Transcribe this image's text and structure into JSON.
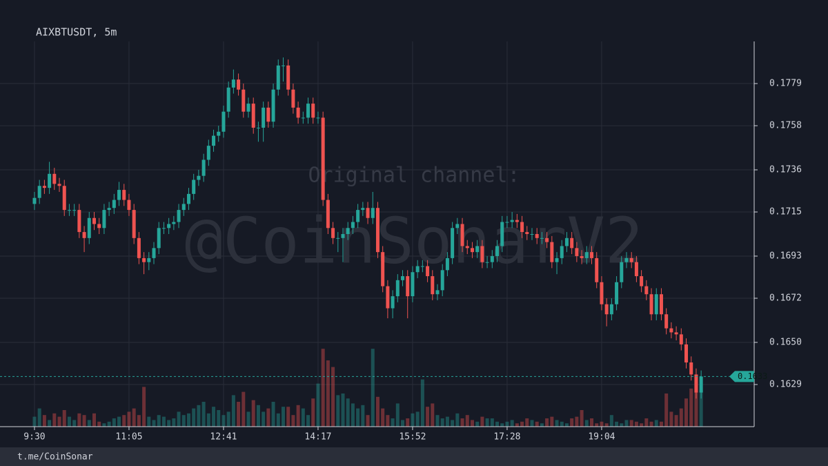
{
  "chart_data": {
    "type": "candlestick",
    "title": "AIXBTUSDT, 5m",
    "watermark": [
      "Original channel:",
      "@CoinSonarV2"
    ],
    "footer": "t.me/CoinSonar",
    "up_color": "#26a69a",
    "down_color": "#ef5350",
    "grid": true,
    "xlim": [
      -6.93,
      144.66
    ],
    "xticks": [
      {
        "value": 0,
        "label": "9:30"
      },
      {
        "value": 19,
        "label": "11:05"
      },
      {
        "value": 38,
        "label": "12:41"
      },
      {
        "value": 57,
        "label": "14:17"
      },
      {
        "value": 76,
        "label": "15:52"
      },
      {
        "value": 95,
        "label": "17:28"
      },
      {
        "value": 114,
        "label": "19:04"
      }
    ],
    "ylim": [
      0.1608,
      0.18
    ],
    "yticks": [
      0.1629,
      {
        "value": 0.165,
        "label": "0.1650"
      },
      0.1672,
      0.1693,
      0.1715,
      0.1736,
      0.1758,
      0.1779
    ],
    "ohlc": [
      [
        0.1719,
        0.1725,
        0.1716,
        0.1722
      ],
      [
        0.1722,
        0.1731,
        0.1719,
        0.1728
      ],
      [
        0.1728,
        0.1731,
        0.1724,
        0.1727
      ],
      [
        0.1727,
        0.174,
        0.1724,
        0.1734
      ],
      [
        0.1734,
        0.1737,
        0.1726,
        0.1729
      ],
      [
        0.1729,
        0.1732,
        0.1725,
        0.1728
      ],
      [
        0.1728,
        0.1731,
        0.1713,
        0.1716
      ],
      [
        0.1716,
        0.1719,
        0.1713,
        0.1716
      ],
      [
        0.1716,
        0.1719,
        0.1713,
        0.1716
      ],
      [
        0.1716,
        0.1719,
        0.1702,
        0.1705
      ],
      [
        0.1705,
        0.1708,
        0.1695,
        0.1702
      ],
      [
        0.1702,
        0.1715,
        0.1699,
        0.1712
      ],
      [
        0.1712,
        0.1715,
        0.1706,
        0.1709
      ],
      [
        0.1709,
        0.1712,
        0.1704,
        0.1707
      ],
      [
        0.1707,
        0.1719,
        0.1704,
        0.1716
      ],
      [
        0.1716,
        0.172,
        0.1713,
        0.1717
      ],
      [
        0.1717,
        0.1724,
        0.1714,
        0.1721
      ],
      [
        0.1721,
        0.173,
        0.1718,
        0.1726
      ],
      [
        0.1726,
        0.1729,
        0.1718,
        0.1721
      ],
      [
        0.1721,
        0.1724,
        0.1713,
        0.1716
      ],
      [
        0.1716,
        0.1719,
        0.1699,
        0.1702
      ],
      [
        0.1702,
        0.1705,
        0.1689,
        0.1692
      ],
      [
        0.1692,
        0.1695,
        0.1684,
        0.169
      ],
      [
        0.169,
        0.1695,
        0.1686,
        0.1692
      ],
      [
        0.1692,
        0.17,
        0.1689,
        0.1697
      ],
      [
        0.1697,
        0.171,
        0.1694,
        0.1707
      ],
      [
        0.1707,
        0.171,
        0.1704,
        0.1707
      ],
      [
        0.1707,
        0.1712,
        0.1704,
        0.1709
      ],
      [
        0.1709,
        0.1713,
        0.1706,
        0.171
      ],
      [
        0.171,
        0.1719,
        0.1707,
        0.1716
      ],
      [
        0.1716,
        0.1722,
        0.1713,
        0.1719
      ],
      [
        0.1719,
        0.1727,
        0.1716,
        0.1724
      ],
      [
        0.1724,
        0.1734,
        0.1721,
        0.1731
      ],
      [
        0.1731,
        0.1736,
        0.1728,
        0.1733
      ],
      [
        0.1733,
        0.1744,
        0.173,
        0.1741
      ],
      [
        0.1741,
        0.1751,
        0.1738,
        0.1748
      ],
      [
        0.1748,
        0.1756,
        0.1745,
        0.1753
      ],
      [
        0.1753,
        0.1758,
        0.175,
        0.1755
      ],
      [
        0.1755,
        0.1768,
        0.1752,
        0.1765
      ],
      [
        0.1765,
        0.178,
        0.1762,
        0.1777
      ],
      [
        0.1777,
        0.1786,
        0.1774,
        0.1781
      ],
      [
        0.1781,
        0.1784,
        0.1773,
        0.1776
      ],
      [
        0.1776,
        0.1779,
        0.1762,
        0.1765
      ],
      [
        0.1765,
        0.1772,
        0.1762,
        0.1769
      ],
      [
        0.1769,
        0.1772,
        0.1754,
        0.1757
      ],
      [
        0.1757,
        0.176,
        0.175,
        0.1757
      ],
      [
        0.1757,
        0.177,
        0.175,
        0.1767
      ],
      [
        0.1767,
        0.177,
        0.1757,
        0.176
      ],
      [
        0.176,
        0.1779,
        0.1757,
        0.1776
      ],
      [
        0.1776,
        0.1791,
        0.1773,
        0.1788
      ],
      [
        0.1788,
        0.1792,
        0.178,
        0.1788
      ],
      [
        0.1788,
        0.1791,
        0.1773,
        0.1776
      ],
      [
        0.1776,
        0.1779,
        0.1764,
        0.1767
      ],
      [
        0.1767,
        0.177,
        0.1759,
        0.1762
      ],
      [
        0.1762,
        0.1765,
        0.1759,
        0.1762
      ],
      [
        0.1762,
        0.1772,
        0.1759,
        0.1769
      ],
      [
        0.1769,
        0.1772,
        0.1759,
        0.1762
      ],
      [
        0.1762,
        0.1765,
        0.1759,
        0.1762
      ],
      [
        0.1762,
        0.1765,
        0.1718,
        0.1721
      ],
      [
        0.1721,
        0.1724,
        0.1704,
        0.1707
      ],
      [
        0.1707,
        0.171,
        0.1699,
        0.1702
      ],
      [
        0.1702,
        0.1705,
        0.1695,
        0.1702
      ],
      [
        0.1702,
        0.1707,
        0.169,
        0.1704
      ],
      [
        0.1704,
        0.171,
        0.1701,
        0.1707
      ],
      [
        0.1707,
        0.1713,
        0.1704,
        0.171
      ],
      [
        0.171,
        0.1719,
        0.1707,
        0.1716
      ],
      [
        0.1716,
        0.172,
        0.1713,
        0.1717
      ],
      [
        0.1717,
        0.172,
        0.1709,
        0.1712
      ],
      [
        0.1712,
        0.1725,
        0.1709,
        0.1717
      ],
      [
        0.1717,
        0.172,
        0.1692,
        0.1695
      ],
      [
        0.1695,
        0.1698,
        0.1675,
        0.1678
      ],
      [
        0.1678,
        0.1681,
        0.1662,
        0.1667
      ],
      [
        0.1667,
        0.1676,
        0.1662,
        0.1673
      ],
      [
        0.1673,
        0.1684,
        0.167,
        0.1681
      ],
      [
        0.1681,
        0.1686,
        0.1678,
        0.1683
      ],
      [
        0.1683,
        0.1686,
        0.1662,
        0.1673
      ],
      [
        0.1673,
        0.1688,
        0.167,
        0.1685
      ],
      [
        0.1685,
        0.1691,
        0.1682,
        0.1688
      ],
      [
        0.1688,
        0.1691,
        0.1685,
        0.1688
      ],
      [
        0.1688,
        0.1691,
        0.168,
        0.1683
      ],
      [
        0.1683,
        0.1686,
        0.1671,
        0.1674
      ],
      [
        0.1674,
        0.1679,
        0.1671,
        0.1676
      ],
      [
        0.1676,
        0.1689,
        0.1673,
        0.1686
      ],
      [
        0.1686,
        0.1695,
        0.1683,
        0.1692
      ],
      [
        0.1692,
        0.171,
        0.1689,
        0.1707
      ],
      [
        0.1707,
        0.1712,
        0.1704,
        0.1709
      ],
      [
        0.1709,
        0.1712,
        0.1695,
        0.1698
      ],
      [
        0.1698,
        0.1701,
        0.1694,
        0.1697
      ],
      [
        0.1697,
        0.17,
        0.1692,
        0.1695
      ],
      [
        0.1695,
        0.1701,
        0.1692,
        0.1698
      ],
      [
        0.1698,
        0.1701,
        0.1687,
        0.169
      ],
      [
        0.169,
        0.1693,
        0.1687,
        0.169
      ],
      [
        0.169,
        0.1696,
        0.1687,
        0.1693
      ],
      [
        0.1693,
        0.1701,
        0.169,
        0.1698
      ],
      [
        0.1698,
        0.1713,
        0.1695,
        0.171
      ],
      [
        0.171,
        0.1713,
        0.1707,
        0.171
      ],
      [
        0.171,
        0.1715,
        0.1707,
        0.1711
      ],
      [
        0.1711,
        0.1714,
        0.1707,
        0.171
      ],
      [
        0.171,
        0.1713,
        0.1702,
        0.1705
      ],
      [
        0.1705,
        0.1708,
        0.1701,
        0.1704
      ],
      [
        0.1704,
        0.1707,
        0.1701,
        0.1704
      ],
      [
        0.1704,
        0.1707,
        0.1699,
        0.1702
      ],
      [
        0.1702,
        0.1705,
        0.1699,
        0.1702
      ],
      [
        0.1702,
        0.1705,
        0.1697,
        0.17
      ],
      [
        0.17,
        0.1703,
        0.1687,
        0.169
      ],
      [
        0.169,
        0.1695,
        0.1684,
        0.1692
      ],
      [
        0.1692,
        0.1701,
        0.1689,
        0.1698
      ],
      [
        0.1698,
        0.1705,
        0.1695,
        0.1702
      ],
      [
        0.1702,
        0.1705,
        0.1694,
        0.1697
      ],
      [
        0.1697,
        0.17,
        0.169,
        0.1693
      ],
      [
        0.1693,
        0.1696,
        0.1689,
        0.1692
      ],
      [
        0.1692,
        0.1698,
        0.1689,
        0.1695
      ],
      [
        0.1695,
        0.1698,
        0.1689,
        0.1692
      ],
      [
        0.1692,
        0.1695,
        0.1677,
        0.168
      ],
      [
        0.168,
        0.1683,
        0.1666,
        0.1669
      ],
      [
        0.1669,
        0.1672,
        0.1658,
        0.1664
      ],
      [
        0.1664,
        0.1672,
        0.1661,
        0.1669
      ],
      [
        0.1669,
        0.1683,
        0.1666,
        0.168
      ],
      [
        0.168,
        0.1693,
        0.1677,
        0.169
      ],
      [
        0.169,
        0.1695,
        0.1687,
        0.1692
      ],
      [
        0.1692,
        0.1695,
        0.1687,
        0.169
      ],
      [
        0.169,
        0.1693,
        0.168,
        0.1683
      ],
      [
        0.1683,
        0.1686,
        0.1675,
        0.1678
      ],
      [
        0.1678,
        0.1681,
        0.1671,
        0.1674
      ],
      [
        0.1674,
        0.1677,
        0.1661,
        0.1664
      ],
      [
        0.1664,
        0.1677,
        0.1661,
        0.1674
      ],
      [
        0.1674,
        0.1677,
        0.1661,
        0.1664
      ],
      [
        0.1664,
        0.1667,
        0.1654,
        0.1657
      ],
      [
        0.1657,
        0.166,
        0.1652,
        0.1655
      ],
      [
        0.1655,
        0.1658,
        0.1651,
        0.1654
      ],
      [
        0.1654,
        0.1657,
        0.1646,
        0.1649
      ],
      [
        0.1649,
        0.1652,
        0.1637,
        0.164
      ],
      [
        0.164,
        0.1643,
        0.1631,
        0.1634
      ],
      [
        0.1634,
        0.1637,
        0.1622,
        0.1625
      ],
      [
        0.1625,
        0.1636,
        0.1622,
        0.1633
      ]
    ],
    "volume": [
      12,
      22,
      14,
      8,
      16,
      12,
      20,
      12,
      8,
      16,
      14,
      8,
      16,
      6,
      4,
      6,
      10,
      12,
      14,
      18,
      22,
      14,
      48,
      12,
      8,
      14,
      12,
      8,
      10,
      18,
      14,
      16,
      22,
      26,
      30,
      16,
      24,
      20,
      14,
      18,
      38,
      30,
      42,
      18,
      32,
      26,
      18,
      22,
      30,
      16,
      24,
      24,
      14,
      26,
      22,
      14,
      34,
      52,
      94,
      80,
      72,
      38,
      40,
      34,
      28,
      22,
      26,
      14,
      94,
      36,
      22,
      14,
      10,
      28,
      8,
      10,
      16,
      18,
      57,
      24,
      28,
      14,
      10,
      12,
      8,
      16,
      10,
      14,
      8,
      6,
      12,
      10,
      10,
      6,
      4,
      6,
      8,
      4,
      6,
      10,
      8,
      6,
      4,
      10,
      12,
      8,
      6,
      4,
      10,
      12,
      20,
      8,
      10,
      4,
      6,
      4,
      14,
      6,
      4,
      8,
      8,
      6,
      4,
      10,
      6,
      8,
      6,
      40,
      18,
      14,
      22,
      34,
      46,
      60,
      44
    ]
  }
}
